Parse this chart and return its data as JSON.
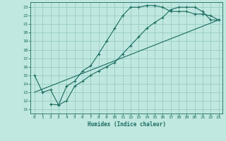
{
  "xlabel": "Humidex (Indice chaleur)",
  "bg_color": "#c0e8e0",
  "grid_color": "#98ccc4",
  "line_color": "#1a6b60",
  "xlim": [
    -0.5,
    23.5
  ],
  "ylim": [
    10.5,
    23.6
  ],
  "xticks": [
    0,
    1,
    2,
    3,
    4,
    5,
    6,
    7,
    8,
    9,
    10,
    11,
    12,
    13,
    14,
    15,
    16,
    17,
    18,
    19,
    20,
    21,
    22,
    23
  ],
  "yticks": [
    11,
    12,
    13,
    14,
    15,
    16,
    17,
    18,
    19,
    20,
    21,
    22,
    23
  ],
  "line1_x": [
    0,
    1,
    2,
    3,
    4,
    5,
    6,
    7,
    8,
    9,
    10,
    11,
    12,
    13,
    14,
    15,
    16,
    17,
    18,
    19,
    20,
    21,
    22,
    23
  ],
  "line1_y": [
    15,
    13,
    13.3,
    11.5,
    13.7,
    14.3,
    15.5,
    16.1,
    17.5,
    19,
    20.5,
    22,
    23,
    23,
    23.2,
    23.2,
    23,
    22.5,
    22.5,
    22.5,
    22.2,
    22.2,
    22,
    21.5
  ],
  "line2_x": [
    2,
    3,
    4,
    5,
    6,
    7,
    8,
    9,
    10,
    11,
    12,
    13,
    14,
    15,
    16,
    17,
    18,
    19,
    20,
    21,
    22,
    23
  ],
  "line2_y": [
    11.6,
    11.5,
    12.0,
    13.7,
    14.3,
    15.0,
    15.5,
    16.0,
    16.5,
    17.5,
    18.5,
    19.5,
    20.5,
    21.2,
    21.8,
    22.7,
    23.0,
    23.0,
    23.0,
    22.5,
    21.5,
    21.5
  ],
  "line3_x": [
    0,
    23
  ],
  "line3_y": [
    13.0,
    21.5
  ]
}
